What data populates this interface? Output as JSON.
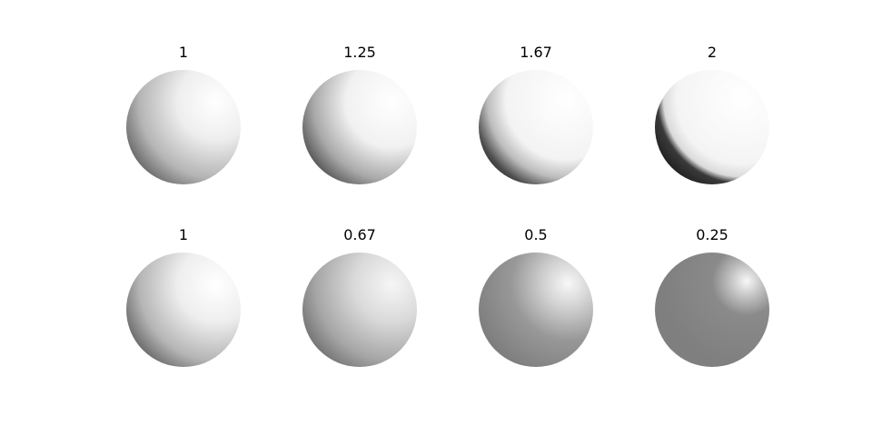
{
  "figure": {
    "rows": [
      {
        "panels": [
          {
            "title": "1"
          },
          {
            "title": "1.25"
          },
          {
            "title": "1.67"
          },
          {
            "title": "2"
          }
        ]
      },
      {
        "panels": [
          {
            "title": "1"
          },
          {
            "title": "0.67"
          },
          {
            "title": "0.5"
          },
          {
            "title": "0.25"
          }
        ]
      }
    ]
  },
  "colors": {
    "background": "#ffffff",
    "shade_light": "#ffffff",
    "shade_dark": "#1a1a1a",
    "shade_mid": "#7f7f7f"
  }
}
